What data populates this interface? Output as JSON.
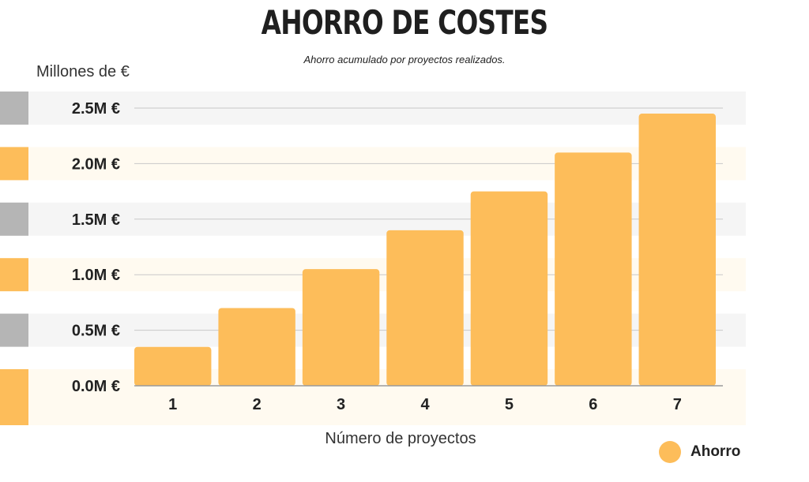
{
  "chart_data": {
    "type": "bar",
    "title": "AHORRO DE COSTES",
    "subtitle": "Ahorro acumulado por proyectos realizados.",
    "ylabel": "Millones de €",
    "xlabel": "Número de proyectos",
    "categories": [
      "1",
      "2",
      "3",
      "4",
      "5",
      "6",
      "7"
    ],
    "series": [
      {
        "name": "Ahorro",
        "values": [
          0.35,
          0.7,
          1.05,
          1.4,
          1.75,
          2.1,
          2.45
        ]
      }
    ],
    "ylim": [
      0,
      2.5
    ],
    "yticks": [
      0,
      0.5,
      1.0,
      1.5,
      2.0,
      2.5
    ],
    "ytick_labels": [
      "0.0M €",
      "0.5M €",
      "1.0M €",
      "1.5M €",
      "2.0M €",
      "2.5M €"
    ],
    "grid": true,
    "legend_position": "bottom-right",
    "colors": {
      "bar": "#fdbd5a",
      "band_gray": "#f5f5f5",
      "band_cream": "#fffaf0",
      "marker_gray": "#b5b5b5",
      "marker_orange": "#fdbd5a",
      "gridline": "#c8c8c8",
      "axis": "#9a9a9a"
    }
  }
}
